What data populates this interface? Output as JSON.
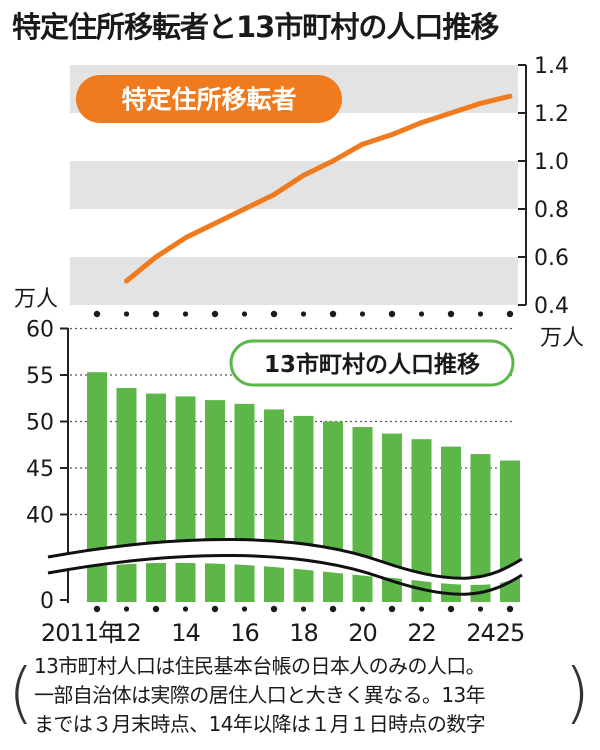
{
  "title": "特定住所移転者と13市町村の人口推移",
  "chart_data": [
    {
      "type": "line",
      "title": "特定住所移転者",
      "x": [
        "2012",
        "2013",
        "2014",
        "2015",
        "2016",
        "2017",
        "2018",
        "2019",
        "2020",
        "2021",
        "2022",
        "2023",
        "2024",
        "2025"
      ],
      "values": [
        0.5,
        0.6,
        0.68,
        0.74,
        0.8,
        0.86,
        0.94,
        1.0,
        1.07,
        1.11,
        1.16,
        1.2,
        1.24,
        1.27
      ],
      "ylim": [
        0.4,
        1.4
      ],
      "yticks": [
        "0.4",
        "0.6",
        "0.8",
        "1.0",
        "1.2",
        "1.4"
      ],
      "yunit": "万人",
      "axis_side": "right",
      "color": "#f07a1e"
    },
    {
      "type": "bar",
      "title": "13市町村の人口推移",
      "categories": [
        "2011年",
        "12",
        "13",
        "14",
        "15",
        "16",
        "17",
        "18",
        "19",
        "20",
        "21",
        "22",
        "23",
        "24",
        "25"
      ],
      "xtick_labels": [
        "2011年",
        "12",
        "",
        "14",
        "",
        "16",
        "",
        "18",
        "",
        "20",
        "",
        "22",
        "",
        "24",
        "25"
      ],
      "values": [
        55.3,
        53.6,
        53.0,
        52.7,
        52.3,
        51.9,
        51.3,
        50.6,
        50.0,
        49.4,
        48.7,
        48.1,
        47.3,
        46.5,
        45.8
      ],
      "yticks": [
        "0",
        "40",
        "45",
        "50",
        "55",
        "60"
      ],
      "yunit": "万人",
      "axis_break": true,
      "color": "#5cb748"
    }
  ],
  "note": [
    "13市町村人口は住民基本台帳の日本人のみの人口。",
    "一部自治体は実際の居住人口と大きく異なる。13年",
    "までは３月末時点、14年以降は１月１日時点の数字"
  ]
}
